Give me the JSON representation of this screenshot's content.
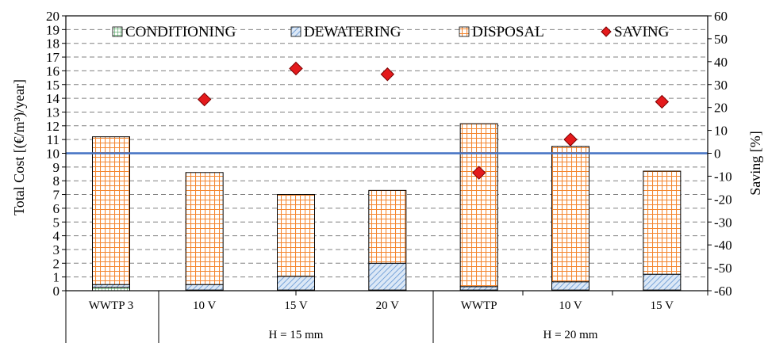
{
  "chart_data": {
    "type": "bar",
    "stacked": true,
    "categories": [
      "WWTP 3",
      "10 V",
      "15 V",
      "20 V",
      "WWTP",
      "10 V",
      "15 V"
    ],
    "groups": [
      {
        "label": "",
        "span": [
          0,
          0
        ]
      },
      {
        "label": "H = 15 mm",
        "span": [
          1,
          3
        ]
      },
      {
        "label": "H = 20 mm",
        "span": [
          4,
          6
        ]
      }
    ],
    "series": [
      {
        "name": "CONDITIONING",
        "axis": "left",
        "values": [
          0.25,
          0.05,
          0.05,
          0.05,
          0.05,
          0.05,
          0.05
        ],
        "color": "#6fbe7e"
      },
      {
        "name": "DEWATERING",
        "axis": "left",
        "values": [
          0.2,
          0.4,
          1.0,
          1.95,
          0.25,
          0.6,
          1.15
        ],
        "color": "#8db4e2"
      },
      {
        "name": "DISPOSAL",
        "axis": "left",
        "values": [
          10.75,
          8.15,
          5.95,
          5.3,
          11.85,
          9.85,
          7.5
        ],
        "color": "#f79646"
      },
      {
        "name": "SAVING",
        "axis": "right",
        "type": "scatter",
        "values": [
          null,
          23.5,
          37,
          34.5,
          -8.5,
          6,
          22.5
        ],
        "color": "#e41a1c"
      }
    ],
    "ylabel": "Total Cost [(€/m³)/year]",
    "y2label": "Saving [%]",
    "ylim": [
      0,
      20
    ],
    "y2lim": [
      -60,
      60
    ],
    "yticks": [
      "0",
      "1",
      "2",
      "3",
      "4",
      "5",
      "6",
      "7",
      "8",
      "9",
      "10",
      "11",
      "12",
      "13",
      "14",
      "15",
      "16",
      "17",
      "18",
      "19",
      "20"
    ],
    "y2ticks": [
      "-60",
      "-50",
      "-40",
      "-30",
      "-20",
      "-10",
      "0",
      "10",
      "20",
      "30",
      "40",
      "50",
      "60"
    ],
    "reference_line": {
      "y": 10,
      "color": "#4472c4"
    },
    "grid": true,
    "legend": "top"
  }
}
